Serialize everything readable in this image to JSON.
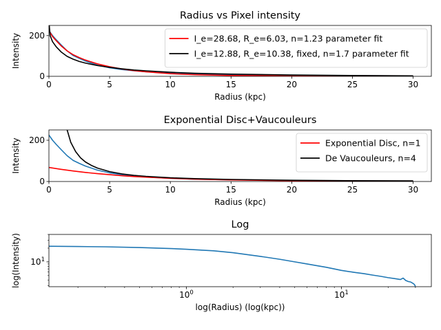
{
  "chart_data": [
    {
      "type": "line",
      "title": "Radius vs Pixel intensity",
      "xlabel": "Radius (kpc)",
      "ylabel": "Intensity",
      "xlim": [
        0,
        31.5
      ],
      "ylim": [
        0,
        250
      ],
      "xticks": [
        0,
        5,
        10,
        15,
        20,
        25,
        30
      ],
      "xtick_labels": [
        "0",
        "5",
        "10",
        "15",
        "20",
        "25",
        "30"
      ],
      "yticks": [
        0,
        200
      ],
      "ytick_labels": [
        "0",
        "200"
      ],
      "legend_position": "upper right",
      "series": [
        {
          "name": "",
          "color": "#1f77b4",
          "x": [
            0,
            0.3,
            0.6,
            1,
            1.5,
            2,
            2.5,
            3,
            4,
            5,
            6,
            7,
            8,
            10,
            12,
            15,
            20,
            25,
            30
          ],
          "y": [
            225,
            200,
            180,
            155,
            125,
            102,
            88,
            75,
            55,
            42,
            33,
            27,
            22,
            15,
            11,
            8,
            5,
            3,
            2
          ]
        },
        {
          "name": "I_e=28.68, R_e=6.03, n=1.23 parameter fit",
          "color": "#ff0000",
          "x": [
            0,
            0.3,
            0.6,
            1,
            1.5,
            2,
            2.5,
            3,
            4,
            5,
            6,
            7,
            8,
            10,
            12,
            15,
            20,
            25,
            30
          ],
          "y": [
            225,
            195,
            175,
            150,
            125,
            106,
            92,
            80,
            61,
            47,
            36,
            28,
            22,
            13,
            8,
            4,
            1.5,
            0.5,
            0.2
          ]
        },
        {
          "name": "I_e=12.88, R_e=10.38, fixed, n=1.7 parameter fit",
          "color": "#000000",
          "x": [
            0,
            0.1,
            0.3,
            0.6,
            1,
            1.5,
            2,
            2.5,
            3,
            4,
            5,
            6,
            7,
            8,
            10,
            12,
            15,
            20,
            25,
            30
          ],
          "y": [
            270,
            200,
            170,
            145,
            120,
            98,
            84,
            73,
            65,
            53,
            44,
            37,
            31,
            27,
            20,
            15,
            11,
            6.5,
            4,
            2.5
          ]
        }
      ]
    },
    {
      "type": "line",
      "title": "Exponential Disc+Vaucouleurs",
      "xlabel": "Radius (kpc)",
      "ylabel": "Intensity",
      "xlim": [
        0,
        31.5
      ],
      "ylim": [
        0,
        250
      ],
      "xticks": [
        0,
        5,
        10,
        15,
        20,
        25,
        30
      ],
      "xtick_labels": [
        "0",
        "5",
        "10",
        "15",
        "20",
        "25",
        "30"
      ],
      "yticks": [
        0,
        200
      ],
      "ytick_labels": [
        "0",
        "200"
      ],
      "legend_position": "upper right",
      "series": [
        {
          "name": "",
          "color": "#1f77b4",
          "x": [
            0,
            0.3,
            0.6,
            1,
            1.5,
            2,
            2.5,
            3,
            4,
            5,
            6,
            7,
            8,
            10,
            12,
            15,
            20,
            25,
            30
          ],
          "y": [
            225,
            200,
            180,
            155,
            125,
            102,
            88,
            75,
            55,
            42,
            33,
            27,
            22,
            15,
            11,
            8,
            5,
            3,
            2
          ]
        },
        {
          "name": "Exponential Disc, n=1",
          "color": "#ff0000",
          "x": [
            0,
            1,
            2,
            3,
            4,
            5,
            6,
            7,
            8,
            10,
            12,
            15,
            20,
            25,
            30
          ],
          "y": [
            68,
            59,
            51,
            44,
            38,
            33,
            28,
            24,
            21,
            15.5,
            11.5,
            7.5,
            3.5,
            1.6,
            0.8
          ]
        },
        {
          "name": "De Vaucouleurs, n=4",
          "color": "#000000",
          "x": [
            1.4,
            1.8,
            2.2,
            2.6,
            3,
            3.5,
            4,
            5,
            6,
            7,
            8,
            10,
            12,
            15,
            20,
            25,
            30
          ],
          "y": [
            270,
            190,
            145,
            115,
            95,
            78,
            65,
            48,
            37,
            30,
            25,
            18,
            14,
            10,
            6,
            4,
            3
          ]
        }
      ]
    },
    {
      "type": "line",
      "title": "Log",
      "xlabel": "log(Radius) (log(kpc))",
      "ylabel": "log(Intensity)",
      "xscale": "log",
      "yscale": "log",
      "xlim": [
        0.13,
        38
      ],
      "ylim": [
        2.85,
        40
      ],
      "xticks": [
        1,
        10
      ],
      "xtick_labels": [
        "10^0",
        "10^1"
      ],
      "yticks": [
        10
      ],
      "ytick_labels": [
        "10^1"
      ],
      "series": [
        {
          "name": "",
          "color": "#1f77b4",
          "x": [
            0.13,
            0.2,
            0.3,
            0.5,
            0.8,
            1,
            1.5,
            2,
            3,
            4,
            5,
            6,
            7,
            8,
            10,
            12,
            14,
            16,
            18,
            20,
            22,
            24,
            25,
            26,
            27,
            28,
            28.8,
            29.2,
            29.6,
            30
          ],
          "y": [
            22,
            21.7,
            21.4,
            20.6,
            19.6,
            18.9,
            17.5,
            15.9,
            13.2,
            11.4,
            10,
            9,
            8.2,
            7.6,
            6.5,
            5.9,
            5.5,
            5.1,
            4.8,
            4.5,
            4.3,
            4.1,
            4.4,
            3.9,
            3.7,
            3.6,
            3.4,
            3.3,
            3.15,
            2.9
          ]
        }
      ]
    }
  ]
}
